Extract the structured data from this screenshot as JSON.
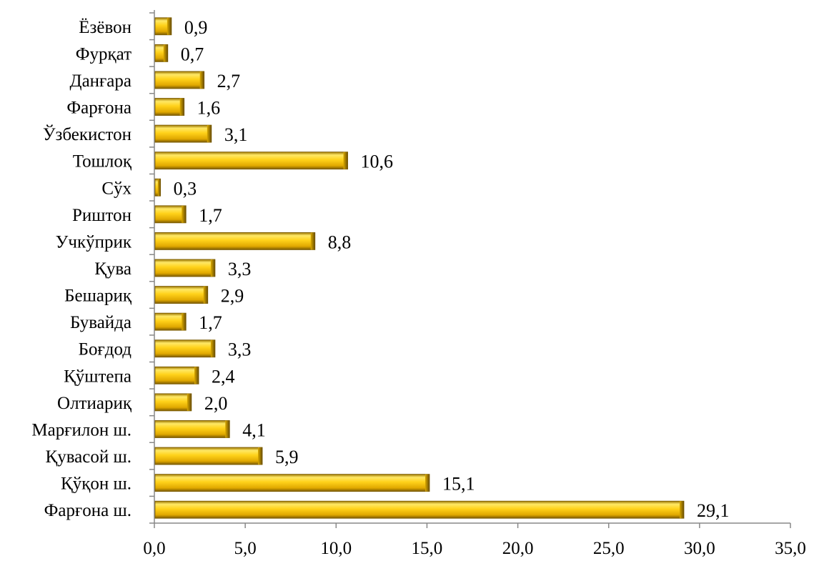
{
  "chart_data": {
    "type": "bar",
    "orientation": "horizontal",
    "categories": [
      "Ёзёвон",
      "Фурқат",
      "Данғара",
      "Фарғона",
      "Ўзбекистон",
      "Тошлоқ",
      "Сўх",
      "Риштон",
      "Учкўприк",
      "Қува",
      "Бешариқ",
      "Бувайда",
      "Боғдод",
      "Қўштепа",
      "Олтиариқ",
      "Марғилон ш.",
      "Қувасой ш.",
      "Қўқон ш.",
      "Фарғона ш."
    ],
    "values": [
      0.9,
      0.7,
      2.7,
      1.6,
      3.1,
      10.6,
      0.3,
      1.7,
      8.8,
      3.3,
      2.9,
      1.7,
      3.3,
      2.4,
      2.0,
      4.1,
      5.9,
      15.1,
      29.1
    ],
    "value_labels": [
      "0,9",
      "0,7",
      "2,7",
      "1,6",
      "3,1",
      "10,6",
      "0,3",
      "1,7",
      "8,8",
      "3,3",
      "2,9",
      "1,7",
      "3,3",
      "2,4",
      "2,0",
      "4,1",
      "5,9",
      "15,1",
      "29,1"
    ],
    "xlim": [
      0,
      35
    ],
    "x_ticks": [
      0,
      5,
      10,
      15,
      20,
      25,
      30,
      35
    ],
    "x_tick_labels": [
      "0,0",
      "5,0",
      "10,0",
      "15,0",
      "20,0",
      "25,0",
      "30,0",
      "35,0"
    ],
    "grid": false,
    "legend": "none",
    "bar_color": "#e8b800",
    "bar_highlight": "#fff27a",
    "bar_shadow": "#8a6a00"
  }
}
